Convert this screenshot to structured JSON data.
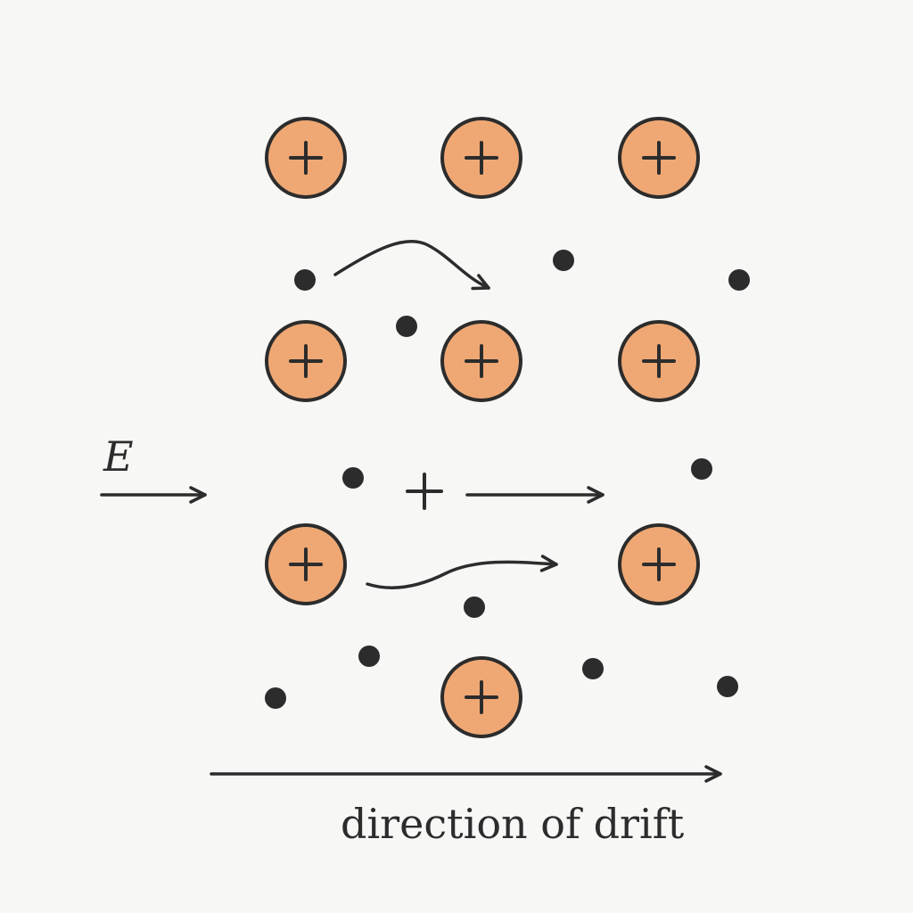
{
  "labels": {
    "field": "E",
    "drift": "direction of drift"
  },
  "colors": {
    "ion_fill": "#efa874",
    "stroke": "#2c2c2c",
    "background": "#f7f7f6"
  },
  "icons": {
    "ion": "positive-ion-icon",
    "electron": "electron-dot-icon",
    "hole": "plus-sign-icon"
  }
}
